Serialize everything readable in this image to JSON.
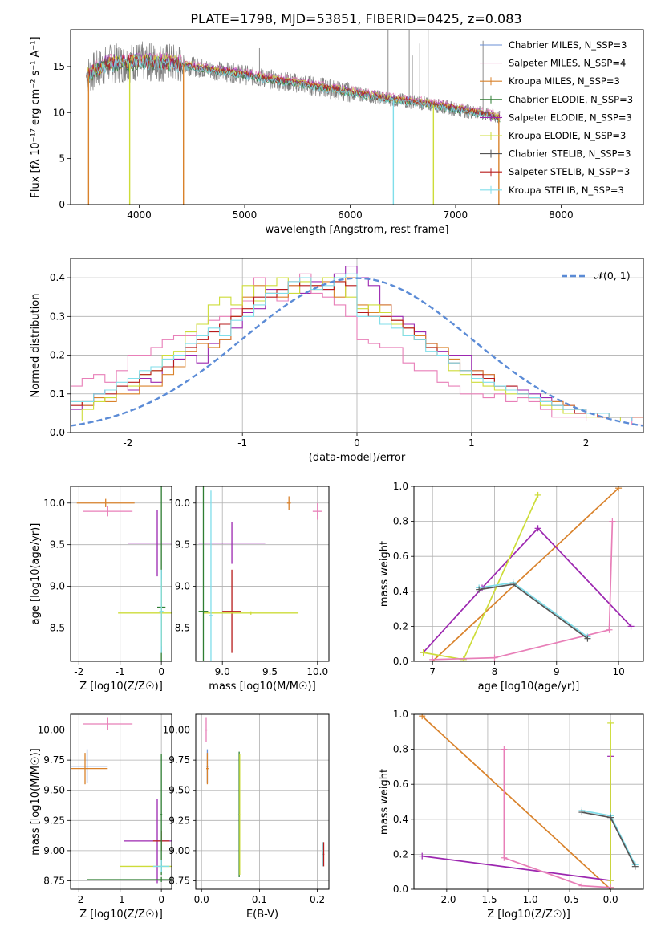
{
  "figure": {
    "title": "PLATE=1798, MJD=53851, FIBERID=0425, z=0.083"
  },
  "chart_data": [
    {
      "id": "spectrum",
      "type": "line",
      "xlabel": "wavelength [Angstrom, rest frame]",
      "ylabel": "Flux [fλ 10⁻¹⁷ erg cm⁻² s⁻¹ A⁻¹]",
      "xlim": [
        3350,
        8780
      ],
      "ylim": [
        0,
        19
      ],
      "xticks": [
        4000,
        5000,
        6000,
        7000,
        8000
      ],
      "yticks": [
        0,
        5,
        10,
        15
      ],
      "grid": false,
      "legend_position": "top-right",
      "legend": [
        {
          "label": "Chabrier MILES, N_SSP=3",
          "color": "#6A8FD6"
        },
        {
          "label": "Salpeter MILES, N_SSP=4",
          "color": "#E87FB8"
        },
        {
          "label": "Kroupa MILES, N_SSP=3",
          "color": "#D9822B"
        },
        {
          "label": "Chabrier ELODIE, N_SSP=3",
          "color": "#2E7D32"
        },
        {
          "label": "Salpeter ELODIE, N_SSP=3",
          "color": "#9C27B0"
        },
        {
          "label": "Kroupa ELODIE, N_SSP=3",
          "color": "#CDDC39"
        },
        {
          "label": "Chabrier STELIB, N_SSP=3",
          "color": "#555555"
        },
        {
          "label": "Salpeter STELIB, N_SSP=3",
          "color": "#B71C1C"
        },
        {
          "label": "Kroupa STELIB, N_SSP=3",
          "color": "#80DEEA"
        }
      ],
      "continuum": {
        "x": [
          3500,
          3700,
          3900,
          4000,
          4100,
          4300,
          4500,
          4700,
          4900,
          5100,
          5300,
          5500,
          5700,
          5900,
          6100,
          6300,
          6500,
          6700,
          6900,
          7100,
          7300,
          7420
        ],
        "y": [
          14.0,
          15.3,
          15.4,
          15.6,
          15.5,
          15.4,
          15.0,
          14.6,
          14.3,
          13.9,
          13.5,
          13.2,
          12.8,
          12.4,
          12.0,
          11.6,
          11.3,
          11.0,
          10.6,
          10.2,
          9.8,
          9.4
        ]
      },
      "emission_lines": [
        {
          "x": 4100,
          "y": 17.5
        },
        {
          "x": 5140,
          "y": 17.0
        },
        {
          "x": 6360,
          "y": 19.0
        },
        {
          "x": 6560,
          "y": 19.0
        },
        {
          "x": 6590,
          "y": 16.2
        },
        {
          "x": 6660,
          "y": 17.5
        },
        {
          "x": 6740,
          "y": 19.0
        },
        {
          "x": 7260,
          "y": 17.8
        }
      ],
      "data_edges": [
        3520,
        3910,
        4420,
        6410,
        6790,
        7410
      ]
    },
    {
      "id": "residuals",
      "type": "line",
      "xlabel": "(data-model)/error",
      "ylabel": "Normed distribution",
      "xlim": [
        -2.5,
        2.5
      ],
      "ylim": [
        0,
        0.45
      ],
      "xticks": [
        -2,
        -1,
        0,
        1,
        2
      ],
      "yticks": [
        0.0,
        0.1,
        0.2,
        0.3,
        0.4
      ],
      "grid": true,
      "legend_position": "top-right",
      "legend": [
        {
          "label": "𝒩(0, 1)",
          "color": "#5B8BD6"
        }
      ],
      "bin_edges_range": [
        -2.5,
        2.5
      ],
      "bin_width": 0.1,
      "series": [
        {
          "color": "#9C27B0",
          "values": [
            0.06,
            0.07,
            0.1,
            0.11,
            0.12,
            0.11,
            0.14,
            0.13,
            0.17,
            0.19,
            0.2,
            0.18,
            0.23,
            0.24,
            0.27,
            0.31,
            0.32,
            0.37,
            0.37,
            0.38,
            0.36,
            0.39,
            0.37,
            0.41,
            0.43,
            0.4,
            0.38,
            0.33,
            0.3,
            0.28,
            0.26,
            0.23,
            0.21,
            0.2,
            0.2,
            0.16,
            0.15,
            0.12,
            0.12,
            0.11,
            0.1,
            0.09,
            0.08,
            0.07,
            0.06,
            0.05,
            0.05,
            0.04,
            0.04,
            0.03
          ]
        },
        {
          "color": "#E87FB8",
          "values": [
            0.12,
            0.14,
            0.15,
            0.13,
            0.16,
            0.2,
            0.2,
            0.22,
            0.24,
            0.25,
            0.25,
            0.28,
            0.29,
            0.3,
            0.32,
            0.34,
            0.4,
            0.36,
            0.34,
            0.38,
            0.41,
            0.36,
            0.35,
            0.33,
            0.3,
            0.24,
            0.23,
            0.22,
            0.22,
            0.18,
            0.16,
            0.16,
            0.13,
            0.12,
            0.1,
            0.1,
            0.09,
            0.1,
            0.08,
            0.09,
            0.08,
            0.06,
            0.04,
            0.04,
            0.04,
            0.03,
            0.03,
            0.03,
            0.03,
            0.02
          ]
        },
        {
          "color": "#D9822B",
          "values": [
            0.08,
            0.07,
            0.09,
            0.08,
            0.1,
            0.1,
            0.12,
            0.12,
            0.15,
            0.17,
            0.21,
            0.23,
            0.22,
            0.24,
            0.3,
            0.35,
            0.38,
            0.36,
            0.35,
            0.38,
            0.4,
            0.38,
            0.39,
            0.35,
            0.4,
            0.33,
            0.31,
            0.33,
            0.29,
            0.27,
            0.25,
            0.23,
            0.22,
            0.19,
            0.16,
            0.16,
            0.15,
            0.12,
            0.11,
            0.1,
            0.09,
            0.08,
            0.08,
            0.07,
            0.06,
            0.05,
            0.05,
            0.04,
            0.04,
            0.04
          ]
        },
        {
          "color": "#CDDC39",
          "values": [
            0.03,
            0.06,
            0.08,
            0.09,
            0.12,
            0.12,
            0.15,
            0.16,
            0.2,
            0.21,
            0.26,
            0.28,
            0.33,
            0.35,
            0.33,
            0.38,
            0.34,
            0.38,
            0.4,
            0.36,
            0.39,
            0.37,
            0.4,
            0.39,
            0.35,
            0.32,
            0.33,
            0.31,
            0.28,
            0.25,
            0.24,
            0.22,
            0.2,
            0.16,
            0.15,
            0.13,
            0.12,
            0.11,
            0.1,
            0.1,
            0.09,
            0.07,
            0.06,
            0.05,
            0.05,
            0.04,
            0.04,
            0.04,
            0.03,
            0.03
          ]
        },
        {
          "color": "#B71C1C",
          "values": [
            0.07,
            0.08,
            0.1,
            0.1,
            0.12,
            0.13,
            0.15,
            0.16,
            0.17,
            0.2,
            0.22,
            0.24,
            0.26,
            0.28,
            0.3,
            0.32,
            0.35,
            0.35,
            0.37,
            0.39,
            0.38,
            0.38,
            0.37,
            0.39,
            0.38,
            0.31,
            0.3,
            0.3,
            0.29,
            0.27,
            0.24,
            0.22,
            0.2,
            0.18,
            0.16,
            0.15,
            0.14,
            0.12,
            0.12,
            0.1,
            0.09,
            0.08,
            0.07,
            0.06,
            0.05,
            0.05,
            0.04,
            0.04,
            0.04,
            0.04
          ]
        },
        {
          "color": "#80DEEA",
          "values": [
            0.08,
            0.08,
            0.1,
            0.11,
            0.13,
            0.14,
            0.16,
            0.17,
            0.19,
            0.2,
            0.23,
            0.25,
            0.27,
            0.25,
            0.29,
            0.3,
            0.33,
            0.36,
            0.36,
            0.39,
            0.4,
            0.37,
            0.38,
            0.4,
            0.41,
            0.3,
            0.3,
            0.28,
            0.27,
            0.25,
            0.24,
            0.21,
            0.2,
            0.18,
            0.16,
            0.14,
            0.13,
            0.12,
            0.11,
            0.1,
            0.09,
            0.08,
            0.07,
            0.06,
            0.06,
            0.05,
            0.05,
            0.04,
            0.04,
            0.03
          ]
        }
      ],
      "normal_curve": {
        "mean": 0,
        "sigma": 1,
        "color": "#5B8BD6"
      }
    },
    {
      "id": "age_vs_Z",
      "type": "scatter",
      "xlabel": "Z [log10(Z/Z☉)]",
      "ylabel": "age  [log10(age/yr)]",
      "xlim": [
        -2.2,
        0.25
      ],
      "ylim": [
        8.1,
        10.2
      ],
      "xticks": [
        -2,
        -1,
        0
      ],
      "yticks": [
        8.5,
        9.0,
        9.5,
        10.0
      ],
      "grid": true,
      "crosses": [
        {
          "x": -1.35,
          "y": 10.0,
          "xerr": 0.7,
          "yerr": 0.05,
          "color": "#D9822B"
        },
        {
          "x": -1.3,
          "y": 9.9,
          "xerr": 0.6,
          "yerr": 0.06,
          "color": "#E87FB8"
        },
        {
          "x": -0.1,
          "y": 9.52,
          "xerr": 0.7,
          "yerr": 0.4,
          "color": "#9C27B0"
        },
        {
          "x": 0.0,
          "y": 8.75,
          "xerr": 0.1,
          "yerr": 1.5,
          "color": "#2E7D32"
        },
        {
          "x": 0.0,
          "y": 8.68,
          "xerr": 1.05,
          "yerr": 0.4,
          "color": "#CDDC39"
        },
        {
          "x": 0.0,
          "y": 8.7,
          "xerr": 0.05,
          "yerr": 0.5,
          "color": "#80DEEA"
        }
      ]
    },
    {
      "id": "age_vs_mass",
      "type": "scatter",
      "xlabel": "mass [log10(M/M☉)]",
      "ylabel": "",
      "xlim": [
        8.72,
        10.12
      ],
      "ylim": [
        8.1,
        10.2
      ],
      "xticks": [
        9.0,
        9.5,
        10.0
      ],
      "yticks": [
        8.5,
        9.0,
        9.5,
        10.0
      ],
      "grid": true,
      "crosses": [
        {
          "x": 9.7,
          "y": 10.0,
          "xerr": 0.02,
          "yerr": 0.08,
          "color": "#D9822B"
        },
        {
          "x": 10.0,
          "y": 9.9,
          "xerr": 0.05,
          "yerr": 0.1,
          "color": "#E87FB8"
        },
        {
          "x": 9.1,
          "y": 9.52,
          "xerr": 0.35,
          "yerr": 0.25,
          "color": "#9C27B0"
        },
        {
          "x": 9.1,
          "y": 8.7,
          "xerr": 0.1,
          "yerr": 0.5,
          "color": "#B71C1C"
        },
        {
          "x": 9.3,
          "y": 8.68,
          "xerr": 0.5,
          "yerr": 0.02,
          "color": "#CDDC39"
        },
        {
          "x": 8.8,
          "y": 8.7,
          "xerr": 0.05,
          "yerr": 1.5,
          "color": "#2E7D32"
        },
        {
          "x": 8.88,
          "y": 8.65,
          "xerr": 0.02,
          "yerr": 1.5,
          "color": "#80DEEA"
        }
      ]
    },
    {
      "id": "weight_vs_age",
      "type": "line",
      "xlabel": "age  [log10(age/yr)]",
      "ylabel": "mass weight",
      "xlim": [
        6.7,
        10.4
      ],
      "ylim": [
        0.0,
        1.0
      ],
      "xticks": [
        7,
        8,
        9,
        10
      ],
      "yticks": [
        0.0,
        0.2,
        0.4,
        0.6,
        0.8,
        1.0
      ],
      "grid": true,
      "series": [
        {
          "color": "#D9822B",
          "x": [
            7.0,
            10.0
          ],
          "y": [
            0.0,
            0.99
          ]
        },
        {
          "color": "#9C27B0",
          "x": [
            6.85,
            7.8,
            8.7,
            10.2
          ],
          "y": [
            0.05,
            0.42,
            0.76,
            0.2
          ]
        },
        {
          "color": "#CDDC39",
          "x": [
            6.85,
            7.5,
            8.7
          ],
          "y": [
            0.05,
            0.01,
            0.95
          ]
        },
        {
          "color": "#E87FB8",
          "x": [
            7.0,
            8.0,
            9.85,
            9.9
          ],
          "y": [
            0.01,
            0.02,
            0.18,
            0.8
          ]
        },
        {
          "color": "#80DEEA",
          "x": [
            7.75,
            8.3,
            9.5
          ],
          "y": [
            0.42,
            0.45,
            0.14
          ]
        },
        {
          "color": "#555555",
          "x": [
            7.75,
            8.3,
            9.5
          ],
          "y": [
            0.41,
            0.44,
            0.13
          ]
        }
      ]
    },
    {
      "id": "mass_vs_Z",
      "type": "scatter",
      "xlabel": "Z [log10(Z/Z☉)]",
      "ylabel": "mass [log10(M/M☉)]",
      "xlim": [
        -2.2,
        0.25
      ],
      "ylim": [
        8.68,
        10.13
      ],
      "xticks": [
        -2,
        -1,
        0
      ],
      "yticks": [
        8.75,
        9.0,
        9.25,
        9.5,
        9.75,
        10.0
      ],
      "grid": true,
      "crosses": [
        {
          "x": -1.3,
          "y": 10.05,
          "xerr": 0.6,
          "yerr": 0.05,
          "color": "#E87FB8"
        },
        {
          "x": -1.8,
          "y": 9.7,
          "xerr": 0.5,
          "yerr": 0.14,
          "color": "#6A8FD6"
        },
        {
          "x": -1.85,
          "y": 9.68,
          "xerr": 0.55,
          "yerr": 0.13,
          "color": "#D9822B"
        },
        {
          "x": -0.1,
          "y": 9.08,
          "xerr": 0.8,
          "yerr": 0.35,
          "color": "#9C27B0"
        },
        {
          "x": 0.0,
          "y": 9.08,
          "xerr": 0.2,
          "yerr": 0.08,
          "color": "#B71C1C"
        },
        {
          "x": 0.0,
          "y": 8.87,
          "xerr": 1.0,
          "yerr": 0.02,
          "color": "#CDDC39"
        },
        {
          "x": 0.0,
          "y": 8.76,
          "xerr": 1.8,
          "yerr": 0.02,
          "color": "#2E7D32"
        },
        {
          "x": 0.0,
          "y": 9.3,
          "xerr": 0.02,
          "yerr": 0.5,
          "color": "#2E7D32"
        },
        {
          "x": 0.0,
          "y": 8.87,
          "xerr": 0.2,
          "yerr": 0.05,
          "color": "#80DEEA"
        }
      ]
    },
    {
      "id": "mass_vs_EBV",
      "type": "scatter",
      "xlabel": "E(B-V)",
      "ylabel": "",
      "xlim": [
        -0.01,
        0.22
      ],
      "ylim": [
        8.68,
        10.13
      ],
      "xticks": [
        0.0,
        0.1,
        0.2
      ],
      "yticks": [
        8.75,
        9.0,
        9.25,
        9.5,
        9.75,
        10.0
      ],
      "grid": true,
      "crosses": [
        {
          "x": 0.008,
          "y": 10.0,
          "xerr": 0.002,
          "yerr": 0.1,
          "color": "#E87FB8"
        },
        {
          "x": 0.01,
          "y": 9.7,
          "xerr": 0.002,
          "yerr": 0.14,
          "color": "#6A8FD6"
        },
        {
          "x": 0.01,
          "y": 9.68,
          "xerr": 0.002,
          "yerr": 0.13,
          "color": "#D9822B"
        },
        {
          "x": 0.065,
          "y": 9.3,
          "xerr": 0.001,
          "yerr": 0.52,
          "color": "#2E7D32"
        },
        {
          "x": 0.066,
          "y": 9.3,
          "xerr": 0.001,
          "yerr": 0.5,
          "color": "#CDDC39"
        },
        {
          "x": 0.21,
          "y": 8.97,
          "xerr": 0.001,
          "yerr": 0.1,
          "color": "#80DEEA"
        },
        {
          "x": 0.211,
          "y": 8.97,
          "xerr": 0.001,
          "yerr": 0.1,
          "color": "#B71C1C"
        }
      ]
    },
    {
      "id": "weight_vs_Z",
      "type": "line",
      "xlabel": "Z [log10(Z/Z☉)]",
      "ylabel": "mass weight",
      "xlim": [
        -2.4,
        0.4
      ],
      "ylim": [
        0.0,
        1.0
      ],
      "xticks": [
        -2.0,
        -1.5,
        -1.0,
        -0.5,
        0.0
      ],
      "yticks": [
        0.0,
        0.2,
        0.4,
        0.6,
        0.8,
        1.0
      ],
      "grid": true,
      "series": [
        {
          "color": "#D9822B",
          "x": [
            -2.3,
            0.0
          ],
          "y": [
            0.99,
            0.0
          ]
        },
        {
          "color": "#9C27B0",
          "x": [
            -2.3,
            0.0,
            0.0
          ],
          "y": [
            0.19,
            0.05,
            0.76
          ]
        },
        {
          "color": "#CDDC39",
          "x": [
            0.0,
            0.0,
            0.0
          ],
          "y": [
            0.05,
            0.01,
            0.95
          ]
        },
        {
          "color": "#E87FB8",
          "x": [
            -1.3,
            -1.3,
            -0.35,
            0.0
          ],
          "y": [
            0.8,
            0.18,
            0.02,
            0.01
          ]
        },
        {
          "color": "#80DEEA",
          "x": [
            -0.35,
            0.0,
            0.3
          ],
          "y": [
            0.45,
            0.42,
            0.14
          ]
        },
        {
          "color": "#555555",
          "x": [
            -0.35,
            0.0,
            0.3
          ],
          "y": [
            0.44,
            0.41,
            0.13
          ]
        }
      ]
    }
  ]
}
